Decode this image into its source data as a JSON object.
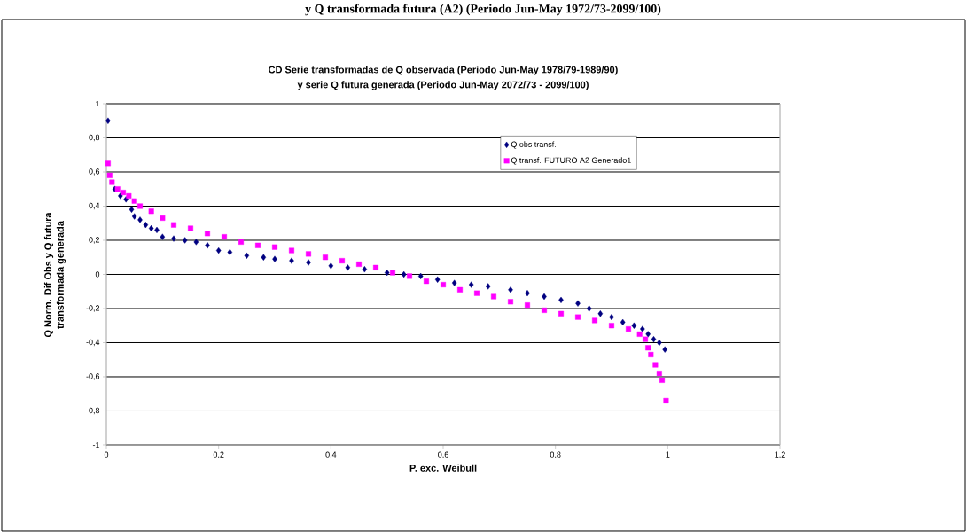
{
  "chart_data": {
    "type": "scatter",
    "title": "CD Serie transformadas de Q observada (Periodo Jun-May 1978/79-1989/90)\ny serie Q futura generada (Periodo Jun-May 2072/73 - 2099/100)",
    "xlabel": "P. exc. Weibull",
    "ylabel": "Q Norm. Dif Obs y Q futura\ntransformada generada",
    "annotations": [
      "y Q transformada futura (A2) (Periodo Jun-May 1972/73-2099/100)"
    ],
    "xlim": [
      0,
      1.2
    ],
    "ylim": [
      -1,
      1
    ],
    "xticks": [
      0,
      {
        "value": 0.2,
        "label": "0,2"
      },
      {
        "value": 0.4,
        "label": "0,4"
      },
      {
        "value": 0.6,
        "label": "0,6"
      },
      {
        "value": 0.8,
        "label": "0,8"
      },
      1,
      {
        "value": 1.2,
        "label": "1,2"
      }
    ],
    "yticks": [
      -1,
      {
        "value": -0.8,
        "label": "-0,8"
      },
      {
        "value": -0.6,
        "label": "-0,6"
      },
      {
        "value": -0.4,
        "label": "-0,4"
      },
      {
        "value": -0.2,
        "label": "-0,2"
      },
      0,
      {
        "value": 0.2,
        "label": "0,2"
      },
      {
        "value": 0.4,
        "label": "0,4"
      },
      {
        "value": 0.6,
        "label": "0,6"
      },
      {
        "value": 0.8,
        "label": "0,8"
      },
      1
    ],
    "grid": "y",
    "legend": "top right",
    "series": [
      {
        "name": "Q obs transf.",
        "color": "#000080",
        "marker": "diamond",
        "x": [
          0.003,
          0.008,
          0.015,
          0.025,
          0.035,
          0.045,
          0.05,
          0.06,
          0.07,
          0.08,
          0.09,
          0.1,
          0.12,
          0.14,
          0.16,
          0.18,
          0.2,
          0.22,
          0.25,
          0.28,
          0.3,
          0.33,
          0.36,
          0.4,
          0.43,
          0.46,
          0.5,
          0.53,
          0.56,
          0.59,
          0.62,
          0.65,
          0.68,
          0.72,
          0.75,
          0.78,
          0.81,
          0.84,
          0.86,
          0.88,
          0.9,
          0.92,
          0.94,
          0.955,
          0.965,
          0.975,
          0.985,
          0.995
        ],
        "values": [
          0.9,
          null,
          0.5,
          0.46,
          0.44,
          0.38,
          0.34,
          0.32,
          0.29,
          0.27,
          0.26,
          0.22,
          0.21,
          0.2,
          0.19,
          0.17,
          0.14,
          0.13,
          0.11,
          0.1,
          0.09,
          0.08,
          0.07,
          0.05,
          0.04,
          0.03,
          0.01,
          0.0,
          -0.01,
          -0.03,
          -0.05,
          -0.06,
          -0.07,
          -0.09,
          -0.11,
          -0.13,
          -0.15,
          -0.17,
          -0.2,
          -0.23,
          -0.25,
          -0.28,
          -0.3,
          -0.32,
          -0.35,
          -0.38,
          -0.4,
          -0.44
        ]
      },
      {
        "name": "Q transf. FUTURO A2 Generado1",
        "color": "#ff00ff",
        "marker": "square",
        "x": [
          0.003,
          0.006,
          0.01,
          0.02,
          0.03,
          0.04,
          0.05,
          0.06,
          0.08,
          0.1,
          0.12,
          0.15,
          0.18,
          0.21,
          0.24,
          0.27,
          0.3,
          0.33,
          0.36,
          0.39,
          0.42,
          0.45,
          0.48,
          0.51,
          0.54,
          0.57,
          0.6,
          0.63,
          0.66,
          0.69,
          0.72,
          0.75,
          0.78,
          0.81,
          0.84,
          0.87,
          0.9,
          0.93,
          0.95,
          0.96,
          0.965,
          0.97,
          0.978,
          0.985,
          0.99,
          0.997
        ],
        "values": [
          0.65,
          0.58,
          0.54,
          0.5,
          0.48,
          0.46,
          0.43,
          0.4,
          0.37,
          0.33,
          0.29,
          0.27,
          0.24,
          0.22,
          0.19,
          0.17,
          0.16,
          0.14,
          0.12,
          0.1,
          0.08,
          0.06,
          0.04,
          0.01,
          -0.01,
          -0.04,
          -0.06,
          -0.09,
          -0.11,
          -0.13,
          -0.16,
          -0.18,
          -0.21,
          -0.23,
          -0.25,
          -0.27,
          -0.3,
          -0.32,
          -0.35,
          -0.38,
          -0.43,
          -0.47,
          -0.53,
          -0.58,
          -0.62,
          -0.74
        ]
      }
    ]
  }
}
